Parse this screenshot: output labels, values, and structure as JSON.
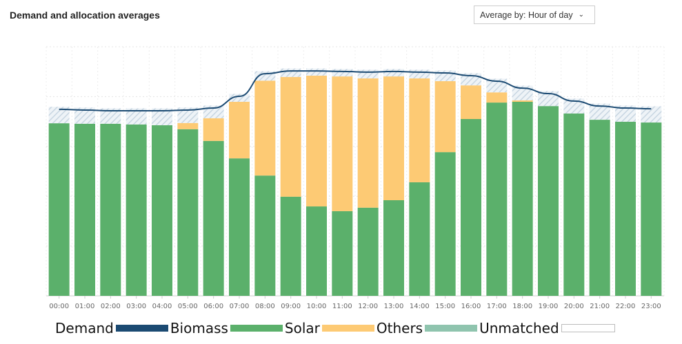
{
  "header": {
    "title": "Demand and allocation averages",
    "select_label": "Average by: Hour of day"
  },
  "chart_data": {
    "type": "bar",
    "stacked": true,
    "title": "Demand and allocation averages",
    "xlabel": "",
    "ylabel": "",
    "ylim": [
      0,
      100
    ],
    "grid": true,
    "legend_position": "bottom-left",
    "categories": [
      "00:00",
      "01:00",
      "02:00",
      "03:00",
      "04:00",
      "05:00",
      "06:00",
      "07:00",
      "08:00",
      "09:00",
      "10:00",
      "11:00",
      "12:00",
      "13:00",
      "14:00",
      "15:00",
      "16:00",
      "17:00",
      "18:00",
      "19:00",
      "20:00",
      "21:00",
      "22:00",
      "23:00"
    ],
    "series": [
      {
        "name": "Biomass",
        "values": [
          0,
          0,
          0,
          0,
          0,
          0,
          0,
          0,
          0,
          0,
          0,
          0,
          0,
          0,
          0,
          0,
          0,
          0,
          0,
          0,
          0,
          0,
          0,
          0
        ]
      },
      {
        "name": "Solar",
        "values": [
          69.3,
          69.1,
          69.1,
          68.8,
          68.5,
          66.9,
          62.2,
          55.2,
          48.3,
          39.8,
          35.9,
          34.0,
          35.4,
          38.4,
          45.6,
          57.7,
          71.0,
          77.6,
          77.9,
          76.2,
          73.2,
          70.7,
          69.9,
          69.6
        ]
      },
      {
        "name": "Others",
        "values": [
          0,
          0,
          0,
          0,
          0,
          2.5,
          9.1,
          22.7,
          38.1,
          48.1,
          52.5,
          54.1,
          51.9,
          49.7,
          41.7,
          28.5,
          13.5,
          4.1,
          0.6,
          0,
          0,
          0,
          0,
          0
        ]
      },
      {
        "name": "Demand",
        "type": "line",
        "values": [
          74.9,
          74.6,
          74.3,
          74.3,
          74.3,
          74.6,
          75.4,
          80.1,
          89.2,
          90.3,
          90.3,
          90.1,
          89.8,
          90.1,
          89.8,
          89.5,
          88.4,
          86.2,
          83.4,
          81.2,
          78.2,
          76.2,
          75.4,
          75.1
        ]
      }
    ],
    "legend": [
      {
        "label": "Demand",
        "color": "#1b4a72"
      },
      {
        "label": "Biomass",
        "color": "#5bb06b"
      },
      {
        "label": "Solar",
        "color": "#fdca74"
      },
      {
        "label": "Others",
        "color": "#8fc4ae"
      },
      {
        "label": "Unmatched",
        "color": "#ffffff"
      }
    ],
    "colors": {
      "solar": "#5bb06b",
      "others": "#fdca74",
      "demand": "#1b4a72",
      "unmatched": "#c8d6e2"
    }
  }
}
